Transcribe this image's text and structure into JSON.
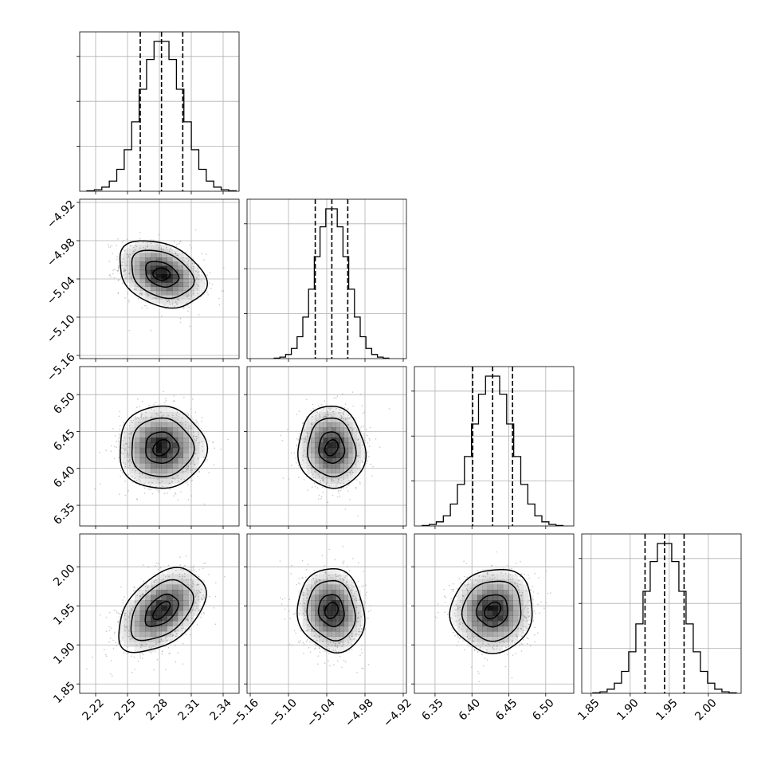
{
  "chart_data": {
    "type": "corner",
    "n_params": 4,
    "axes": [
      {
        "range": [
          2.205,
          2.355
        ],
        "ticks": [
          2.22,
          2.25,
          2.28,
          2.31,
          2.34
        ],
        "tick_labels": [
          "2.22",
          "2.25",
          "2.28",
          "2.31",
          "2.34"
        ]
      },
      {
        "range": [
          -5.165,
          -4.915
        ],
        "ticks": [
          -5.16,
          -5.1,
          -5.04,
          -4.98,
          -4.92
        ],
        "tick_labels": [
          "−5.16",
          "−5.10",
          "−5.04",
          "−4.98",
          "−4.92"
        ]
      },
      {
        "range": [
          6.322,
          6.538
        ],
        "ticks": [
          6.35,
          6.4,
          6.45,
          6.5
        ],
        "tick_labels": [
          "6.35",
          "6.40",
          "6.45",
          "6.50"
        ]
      },
      {
        "range": [
          1.838,
          2.042
        ],
        "ticks": [
          1.85,
          1.9,
          1.95,
          2.0
        ],
        "tick_labels": [
          "1.85",
          "1.90",
          "1.95",
          "2.00"
        ]
      }
    ],
    "parameters": [
      {
        "mean": 2.282,
        "sigma": 0.0195,
        "quantiles": [
          2.262,
          2.282,
          2.302
        ]
      },
      {
        "mean": -5.0325,
        "sigma": 0.025,
        "quantiles": [
          -5.058,
          -5.032,
          -5.007
        ]
      },
      {
        "mean": 6.428,
        "sigma": 0.0265,
        "quantiles": [
          6.401,
          6.428,
          6.455
        ]
      },
      {
        "mean": 1.944,
        "sigma": 0.0255,
        "quantiles": [
          1.919,
          1.944,
          1.969
        ]
      }
    ],
    "correlations": [
      {
        "pair": [
          1,
          0
        ],
        "rho": -0.3
      },
      {
        "pair": [
          2,
          0
        ],
        "rho": 0.0
      },
      {
        "pair": [
          2,
          1
        ],
        "rho": -0.05
      },
      {
        "pair": [
          3,
          0
        ],
        "rho": 0.45
      },
      {
        "pair": [
          3,
          1
        ],
        "rho": -0.1
      },
      {
        "pair": [
          3,
          2
        ],
        "rho": 0.05
      }
    ],
    "histogram_bins": 20,
    "grid": true,
    "colors": {
      "line": "#000000",
      "density": "#000000",
      "points": "#9a9a9a",
      "grid": "#b0b0b0"
    }
  }
}
